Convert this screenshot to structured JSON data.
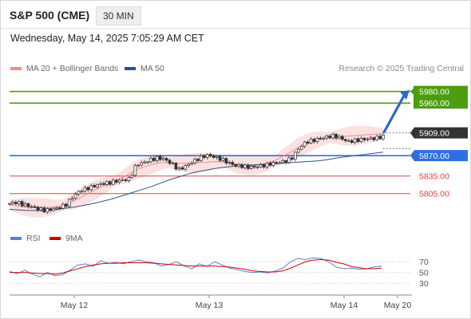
{
  "header": {
    "title": "S&P 500 (CME)",
    "interval": "30 MIN",
    "datetime": "Wednesday, May 14, 2025 7:05:29 AM CET"
  },
  "legend_main": [
    {
      "label": "MA 20 + Bollinger Bands",
      "color": "#f28b8b"
    },
    {
      "label": "MA 50",
      "color": "#2c4f8f"
    }
  ],
  "credit": "Research © 2025 Trading Central",
  "legend_rsi": [
    {
      "label": "RSI",
      "color": "#5b7fd4"
    },
    {
      "label": "9MA",
      "color": "#cc0000"
    }
  ],
  "chart_data": [
    {
      "type": "line",
      "subtype": "candlestick",
      "x_ticks": [
        "May 12",
        "May 13",
        "May 14",
        "May 20"
      ],
      "ylim": [
        5765,
        6000
      ],
      "last_price": "5909.00",
      "levels": [
        {
          "value": 5980,
          "label": "5980.00",
          "color": "#4a9e10",
          "style": "target-box"
        },
        {
          "value": 5960,
          "label": "5960.00",
          "color": "#4a9e10",
          "style": "target-box"
        },
        {
          "value": 5870,
          "label": "5870.00",
          "color": "#2e6fe0",
          "style": "pivot-box"
        },
        {
          "value": 5835,
          "label": "5835.00",
          "color": "#e04040",
          "style": "support"
        },
        {
          "value": 5805,
          "label": "5805.00",
          "color": "#e04040",
          "style": "support"
        }
      ],
      "price_path": [
        5788,
        5790,
        5786,
        5783,
        5779,
        5776,
        5778,
        5781,
        5786,
        5800,
        5810,
        5814,
        5818,
        5822,
        5823,
        5826,
        5828,
        5830,
        5855,
        5858,
        5863,
        5866,
        5864,
        5856,
        5846,
        5852,
        5860,
        5866,
        5871,
        5868,
        5864,
        5858,
        5853,
        5852,
        5850,
        5851,
        5853,
        5856,
        5858,
        5860,
        5865,
        5882,
        5893,
        5896,
        5899,
        5902,
        5904,
        5900,
        5894,
        5896,
        5898,
        5899,
        5900,
        5903
      ],
      "ma20": [
        5786,
        5784,
        5782,
        5781,
        5781,
        5781,
        5782,
        5785,
        5790,
        5796,
        5803,
        5810,
        5816,
        5822,
        5828,
        5834,
        5841,
        5848,
        5852,
        5856,
        5858,
        5858,
        5857,
        5857,
        5857,
        5858,
        5859,
        5860,
        5859,
        5857,
        5855,
        5854,
        5853,
        5854,
        5857,
        5863,
        5870,
        5877,
        5885,
        5891,
        5896,
        5899,
        5901,
        5902,
        5903,
        5904,
        5905,
        5906,
        5907,
        5908
      ],
      "ma50": [
        5778,
        5777,
        5776,
        5776,
        5777,
        5778,
        5780,
        5782,
        5785,
        5788,
        5792,
        5796,
        5801,
        5806,
        5811,
        5816,
        5822,
        5828,
        5833,
        5838,
        5842,
        5845,
        5848,
        5850,
        5852,
        5853,
        5854,
        5855,
        5856,
        5857,
        5858,
        5859,
        5860,
        5861,
        5863,
        5866,
        5868,
        5870,
        5872,
        5874,
        5876
      ],
      "projection_arrow": {
        "from": 5910,
        "to": 5978
      }
    },
    {
      "type": "line",
      "name": "RSI",
      "ylim": [
        20,
        85
      ],
      "y_ticks": [
        70,
        50,
        30
      ],
      "series": [
        {
          "name": "RSI",
          "values": [
            52,
            48,
            54,
            47,
            42,
            50,
            44,
            46,
            55,
            64,
            66,
            61,
            72,
            67,
            69,
            66,
            70,
            73,
            70,
            68,
            62,
            65,
            70,
            62,
            57,
            66,
            61,
            70,
            64,
            58,
            55,
            52,
            50,
            51,
            49,
            53,
            58,
            70,
            76,
            74,
            77,
            76,
            70,
            60,
            57,
            58,
            56,
            57,
            60,
            62
          ]
        },
        {
          "name": "9MA",
          "values": [
            50,
            50,
            50,
            49,
            48,
            48,
            47,
            49,
            53,
            57,
            61,
            64,
            66,
            67,
            67,
            68,
            68,
            68,
            68,
            67,
            66,
            65,
            64,
            63,
            62,
            62,
            62,
            62,
            61,
            60,
            58,
            56,
            53,
            52,
            51,
            51,
            53,
            58,
            64,
            70,
            73,
            74,
            73,
            69,
            66,
            61,
            59,
            57,
            57,
            58
          ]
        }
      ]
    }
  ]
}
